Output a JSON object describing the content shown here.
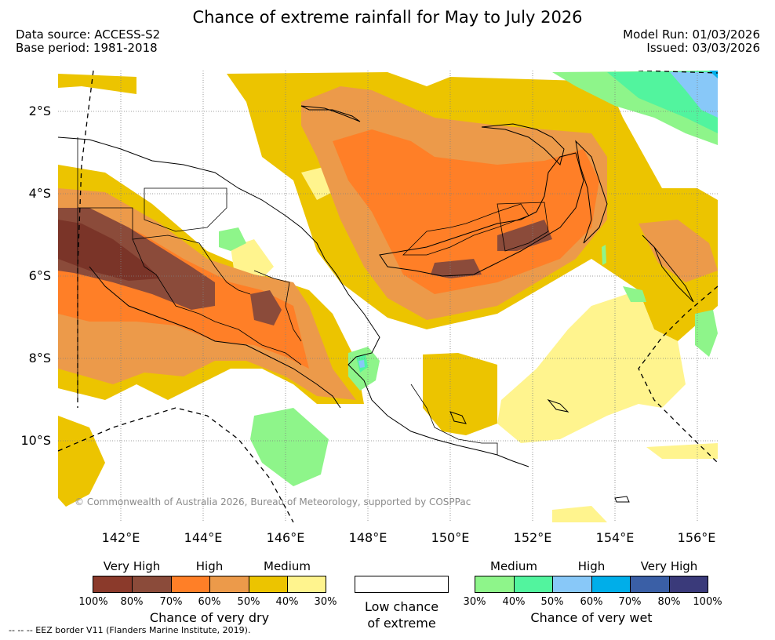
{
  "title": "Chance of extreme rainfall for May to July 2026",
  "meta": {
    "data_source": "Data source: ACCESS-S2",
    "base_period": "Base period: 1981-2018",
    "model_run": "Model Run: 01/03/2026",
    "issued": "Issued: 03/03/2026"
  },
  "axes": {
    "lat_labels": [
      "2°S",
      "4°S",
      "6°S",
      "8°S",
      "10°S"
    ],
    "lon_labels": [
      "142°E",
      "144°E",
      "146°E",
      "148°E",
      "150°E",
      "152°E",
      "154°E",
      "156°E"
    ]
  },
  "copyright": "© Commonwealth of Australia 2026, Bureau of Meteorology, supported by COSPPac",
  "legend": {
    "dry": {
      "categories": [
        "Very High",
        "High",
        "Medium"
      ],
      "ticks": [
        "100%",
        "80%",
        "70%",
        "60%",
        "50%",
        "40%",
        "30%"
      ],
      "caption": "Chance of very dry",
      "colors": [
        "#8b3a2b",
        "#8b4b3a",
        "#ff7f27",
        "#ec9a4a",
        "#ecc400",
        "#fff48e"
      ]
    },
    "none": {
      "line1": "Low chance",
      "line2": "of extreme",
      "color": "#ffffff"
    },
    "wet": {
      "categories": [
        "Medium",
        "High",
        "Very High"
      ],
      "ticks": [
        "30%",
        "40%",
        "50%",
        "60%",
        "70%",
        "80%",
        "100%"
      ],
      "caption": "Chance of very wet",
      "colors": [
        "#8ef58a",
        "#52f49e",
        "#88c8f8",
        "#00aee9",
        "#3a5fa6",
        "#3a3a7a"
      ]
    }
  },
  "eez_note": "--  --  -- EEZ border V11 (Flanders Marine Institute, 2019)."
}
